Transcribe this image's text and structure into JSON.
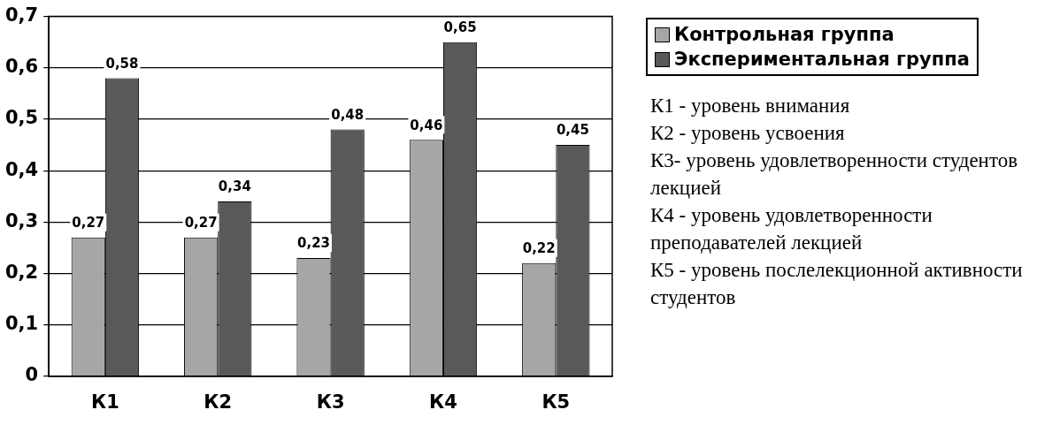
{
  "chart_data": {
    "type": "bar",
    "categories": [
      "К1",
      "К2",
      "К3",
      "К4",
      "К5"
    ],
    "series": [
      {
        "name": "Контрольная группа",
        "color": "#a6a6a6",
        "values": [
          0.27,
          0.27,
          0.23,
          0.46,
          0.22
        ],
        "value_labels": [
          "0,27",
          "0,27",
          "0,23",
          "0,46",
          "0,22"
        ]
      },
      {
        "name": "Экспериментальная группа",
        "color": "#595959",
        "values": [
          0.58,
          0.34,
          0.48,
          0.65,
          0.45
        ],
        "value_labels": [
          "0,58",
          "0,34",
          "0,48",
          "0,65",
          "0,45"
        ]
      }
    ],
    "ylim": [
      0,
      0.7
    ],
    "yticks": [
      {
        "value": 0,
        "label": "0"
      },
      {
        "value": 0.1,
        "label": "0,1"
      },
      {
        "value": 0.2,
        "label": "0,2"
      },
      {
        "value": 0.3,
        "label": "0,3"
      },
      {
        "value": 0.4,
        "label": "0,4"
      },
      {
        "value": 0.5,
        "label": "0,5"
      },
      {
        "value": 0.6,
        "label": "0,6"
      },
      {
        "value": 0.7,
        "label": "0,7"
      }
    ],
    "grid": "y",
    "legend": "top right",
    "annotations": [
      "К1 - уровень внимания",
      "К2 - уровень усвоения",
      "К3- уровень удовлетворенности студентов лекцией",
      "К4 - уровень удовлетворенности преподавателей лекцией",
      "К5 - уровень послелекционной активности студентов"
    ]
  }
}
